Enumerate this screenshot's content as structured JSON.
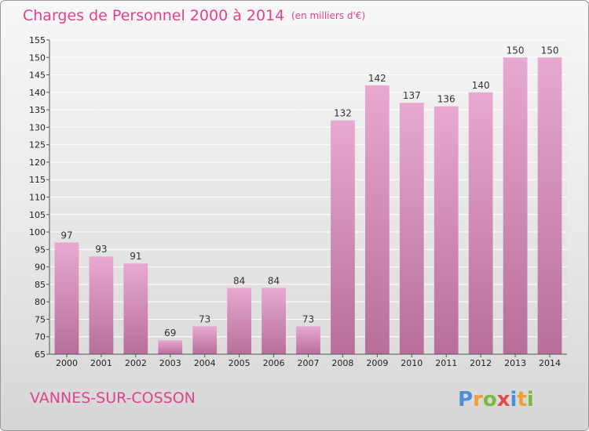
{
  "chart_data": {
    "type": "bar",
    "title": "Charges de Personnel 2000 à 2014",
    "subtitle": "(en milliers d'€)",
    "categories": [
      "2000",
      "2001",
      "2002",
      "2003",
      "2004",
      "2005",
      "2006",
      "2007",
      "2008",
      "2009",
      "2010",
      "2011",
      "2012",
      "2013",
      "2014"
    ],
    "values": [
      97,
      93,
      91,
      69,
      73,
      84,
      84,
      73,
      132,
      142,
      137,
      136,
      140,
      150,
      150
    ],
    "ylim": [
      65,
      155
    ],
    "yticks": [
      65,
      70,
      75,
      80,
      85,
      90,
      95,
      100,
      105,
      110,
      115,
      120,
      125,
      130,
      135,
      140,
      145,
      150,
      155
    ],
    "grid": true,
    "colors": {
      "bar_top": "#e8a9d0",
      "bar_bottom": "#b76e9b",
      "grid": "#ffffff",
      "title": "#e0428b"
    }
  },
  "location": "VANNES-SUR-COSSON",
  "logo": {
    "text": "Proxiti",
    "letters": [
      "P",
      "r",
      "o",
      "x",
      "i",
      "t",
      "i"
    ],
    "colors": [
      "#4a90d9",
      "#f0a030",
      "#7ab940",
      "#e04a4a",
      "#4a90d9",
      "#f0a030",
      "#7ab940"
    ]
  }
}
